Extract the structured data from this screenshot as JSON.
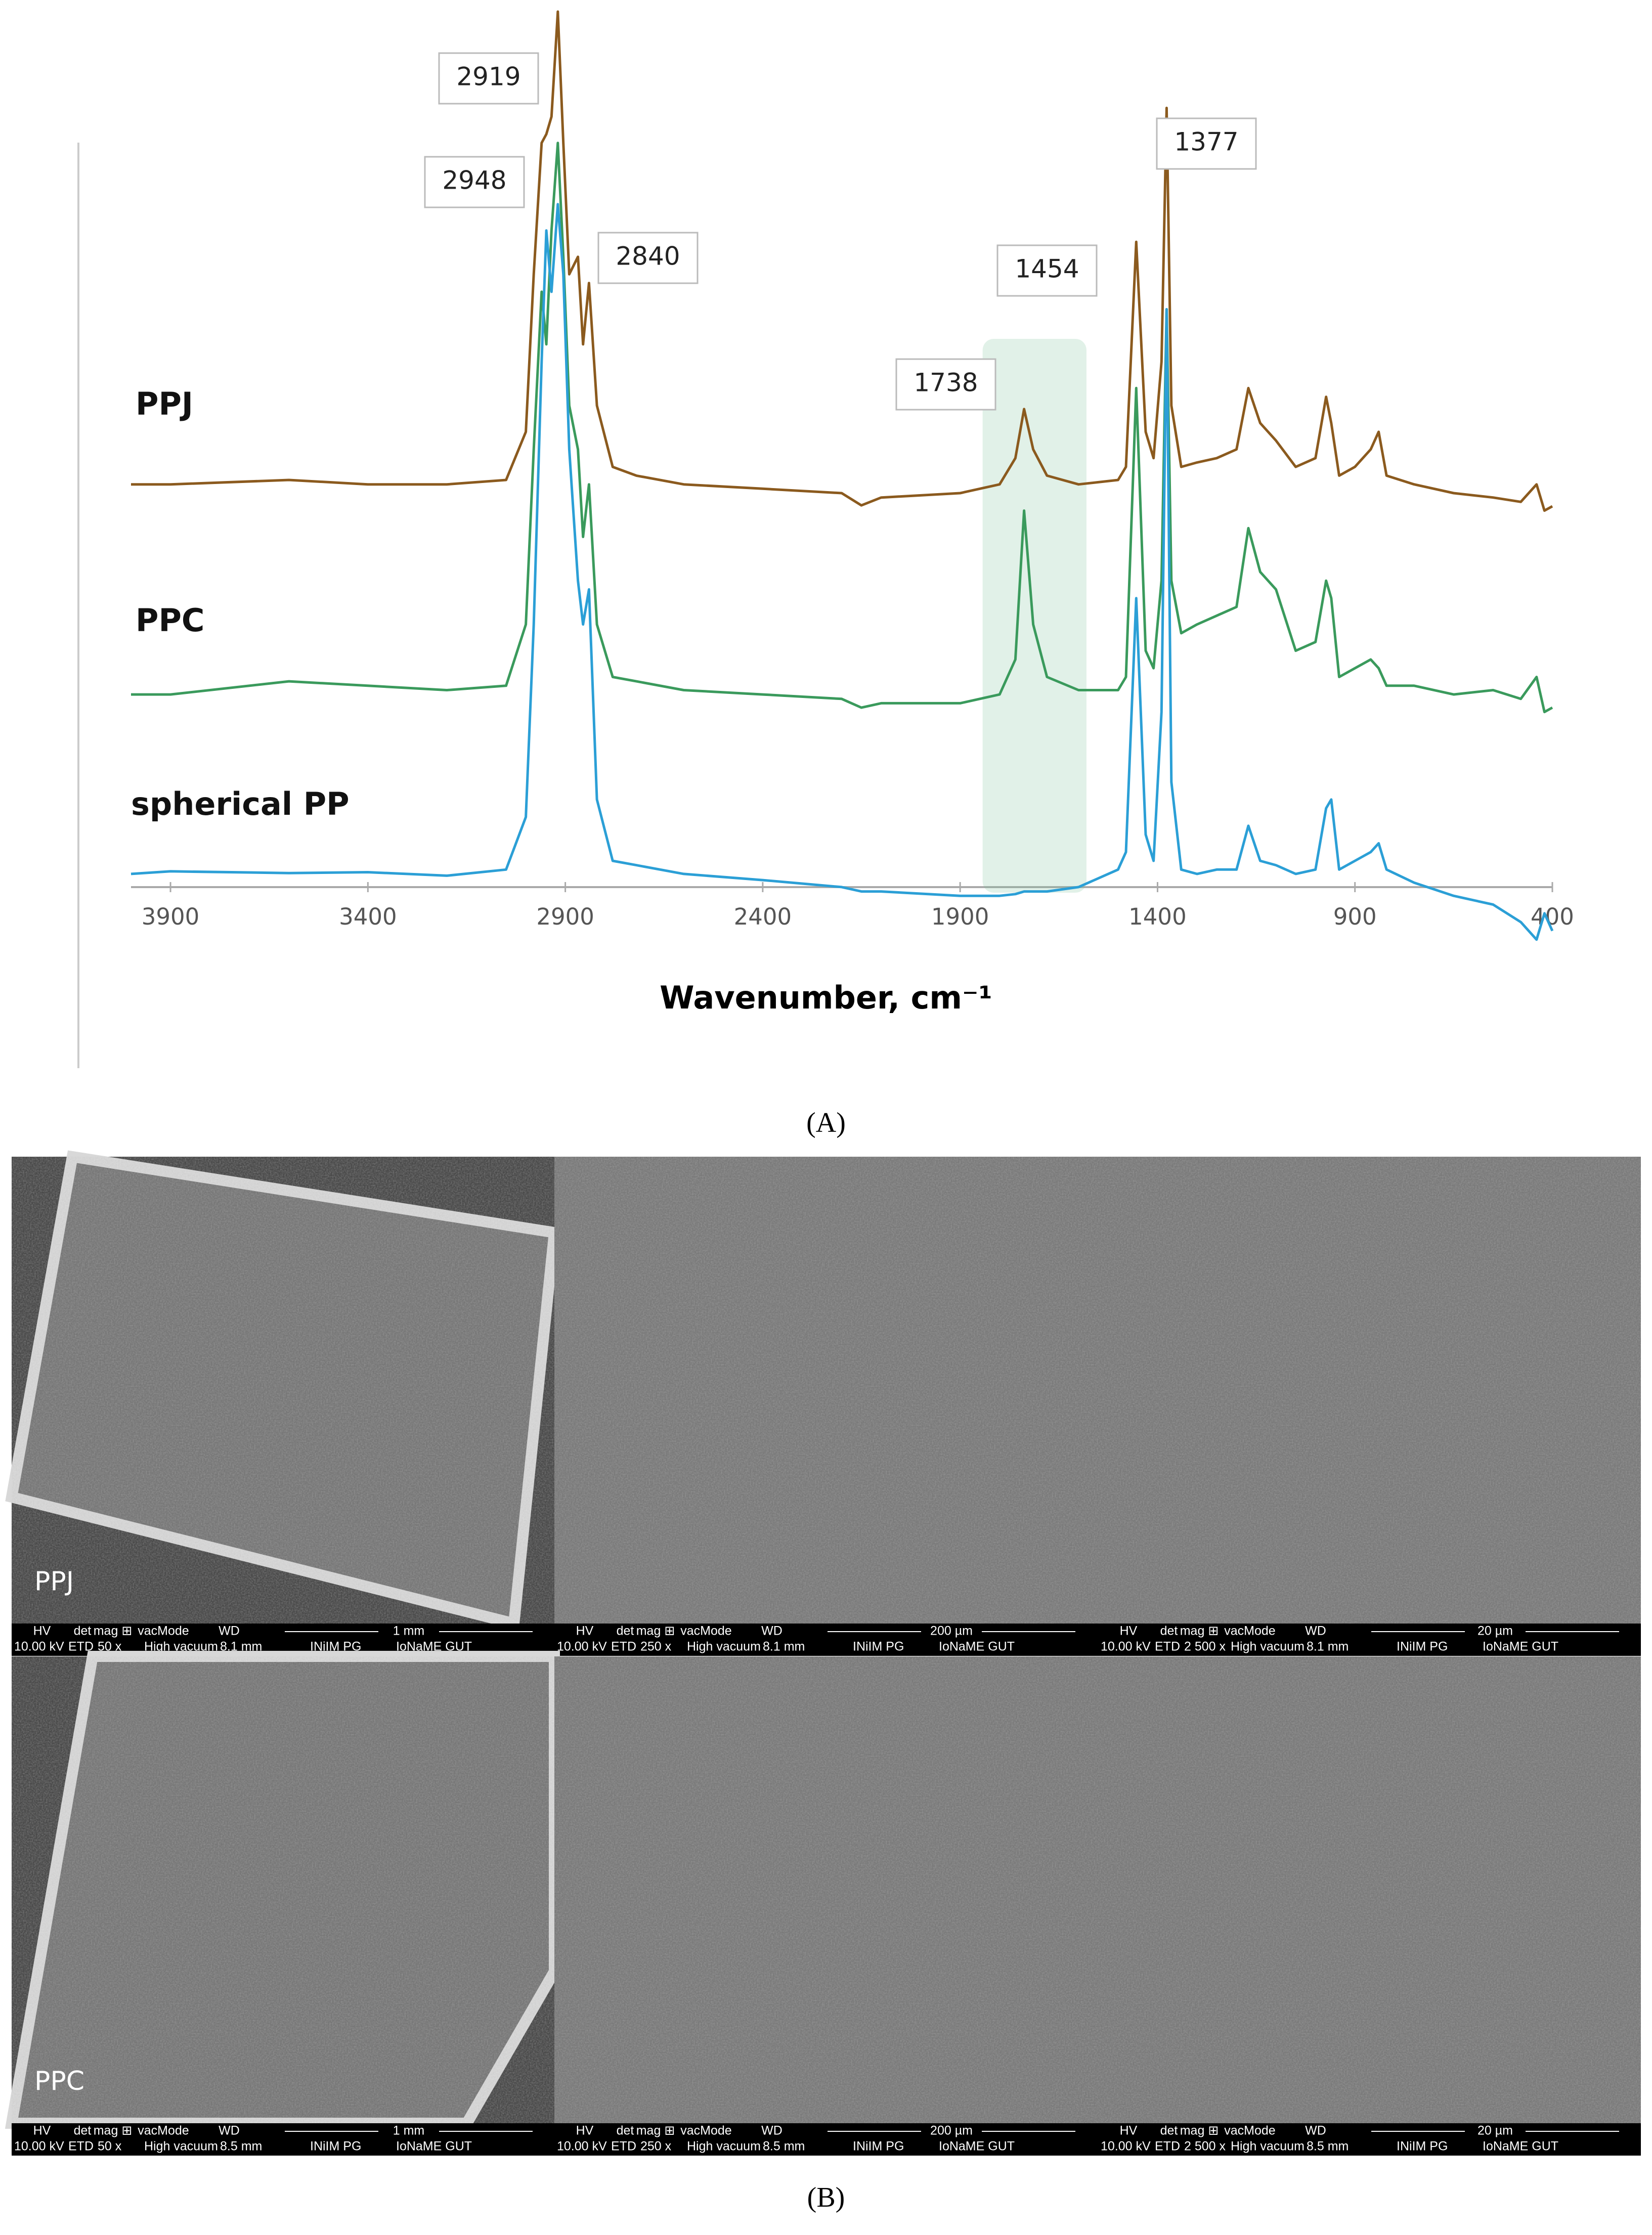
{
  "chart_data": {
    "type": "line",
    "x": [
      4000,
      3900,
      3600,
      3400,
      3200,
      3050,
      3000,
      2980,
      2960,
      2948,
      2935,
      2919,
      2905,
      2890,
      2868,
      2855,
      2840,
      2820,
      2780,
      2720,
      2600,
      2400,
      2200,
      2150,
      2100,
      1900,
      1800,
      1760,
      1738,
      1715,
      1680,
      1600,
      1500,
      1480,
      1454,
      1430,
      1410,
      1390,
      1377,
      1365,
      1340,
      1300,
      1250,
      1200,
      1170,
      1140,
      1100,
      1050,
      1000,
      973,
      960,
      940,
      900,
      860,
      840,
      820,
      750,
      650,
      550,
      480,
      440,
      420,
      400
    ],
    "series": [
      {
        "name": "PPJ",
        "color": "#8b5a1e",
        "values": [
          46,
          46,
          46.5,
          46,
          46,
          46.5,
          52,
          70,
          85,
          86,
          88,
          100,
          85,
          70,
          72,
          62,
          69,
          55,
          48,
          47,
          46,
          45.5,
          45,
          43.6,
          44.5,
          45,
          46,
          49,
          54.6,
          50,
          47,
          46,
          46.5,
          48,
          73.7,
          52,
          49,
          60,
          89,
          55,
          48,
          48.5,
          49,
          50,
          57,
          53,
          51,
          48,
          49,
          56,
          53,
          47,
          48,
          50,
          52,
          47,
          46,
          45,
          44.5,
          44,
          46,
          43,
          43.5
        ]
      },
      {
        "name": "PPC",
        "color": "#3a9a5c",
        "values": [
          22,
          22,
          23.5,
          23,
          22.5,
          23,
          30,
          50,
          68,
          62,
          75,
          85,
          72,
          55,
          50,
          40,
          46,
          30,
          24,
          23.5,
          22.5,
          22,
          21.5,
          20.5,
          21,
          21,
          22,
          26,
          43,
          30,
          24,
          22.5,
          22.5,
          24,
          57,
          27,
          25,
          35,
          66,
          35,
          29,
          30,
          31,
          32,
          41,
          36,
          34,
          27,
          28,
          35,
          33,
          24,
          25,
          26,
          25,
          23,
          23,
          22,
          22.5,
          21.5,
          24,
          20,
          20.5
        ]
      },
      {
        "name": "spherical PP",
        "color": "#2b9fd6",
        "values": [
          1.5,
          1.8,
          1.6,
          1.7,
          1.3,
          2,
          8,
          30,
          60,
          75,
          68,
          78,
          70,
          50,
          35,
          30,
          34,
          10,
          3,
          2.5,
          1.5,
          0.8,
          0,
          -0.5,
          -0.5,
          -1,
          -1,
          -0.8,
          -0.5,
          -0.5,
          -0.5,
          0,
          2,
          4,
          33,
          6,
          3,
          20,
          66,
          12,
          2,
          1.5,
          2,
          2,
          7,
          3,
          2.5,
          1.5,
          2,
          9,
          10,
          2,
          3,
          4,
          5,
          2,
          0.5,
          -1,
          -2,
          -4,
          -6,
          -3,
          -5
        ]
      }
    ],
    "xlim": [
      4000,
      400
    ],
    "xticks": [
      3900,
      3400,
      2900,
      2400,
      1900,
      1400,
      900,
      400
    ],
    "ylim": [
      -10,
      100
    ],
    "xlabel": "Wavenumber, cm⁻¹",
    "peak_labels": [
      2919,
      2948,
      2840,
      1738,
      1454,
      1377
    ],
    "highlight": [
      1843,
      1580
    ],
    "caption": "(A)"
  },
  "sem": {
    "header": [
      "HV",
      "det",
      "mag ⊞",
      "vacMode",
      "WD"
    ],
    "panels": [
      {
        "label": "PPJ",
        "scale": "1 mm",
        "hv": "10.00 kV",
        "det": "ETD",
        "mag": "50 x",
        "vacuum": "High vacuum",
        "wd": "8.1 mm",
        "lab": "INiIM PG",
        "org": "IoNaME GUT"
      },
      {
        "scale": "200 µm",
        "hv": "10.00 kV",
        "det": "ETD",
        "mag": "250 x",
        "vacuum": "High vacuum",
        "wd": "8.1 mm",
        "lab": "INiIM PG",
        "org": "IoNaME GUT"
      },
      {
        "scale": "20 µm",
        "hv": "10.00 kV",
        "det": "ETD",
        "mag": "2 500 x",
        "vacuum": "High vacuum",
        "wd": "8.1 mm",
        "lab": "INiIM PG",
        "org": "IoNaME GUT"
      },
      {
        "label": "PPC",
        "scale": "1 mm",
        "hv": "10.00 kV",
        "det": "ETD",
        "mag": "50 x",
        "vacuum": "High vacuum",
        "wd": "8.5 mm",
        "lab": "INiIM PG",
        "org": "IoNaME GUT"
      },
      {
        "scale": "200 µm",
        "hv": "10.00 kV",
        "det": "ETD",
        "mag": "250 x",
        "vacuum": "High vacuum",
        "wd": "8.5 mm",
        "lab": "INiIM PG",
        "org": "IoNaME GUT"
      },
      {
        "scale": "20 µm",
        "hv": "10.00 kV",
        "det": "ETD",
        "mag": "2 500 x",
        "vacuum": "High vacuum",
        "wd": "8.5 mm",
        "lab": "INiIM PG",
        "org": "IoNaME GUT"
      }
    ],
    "caption": "(B)"
  }
}
